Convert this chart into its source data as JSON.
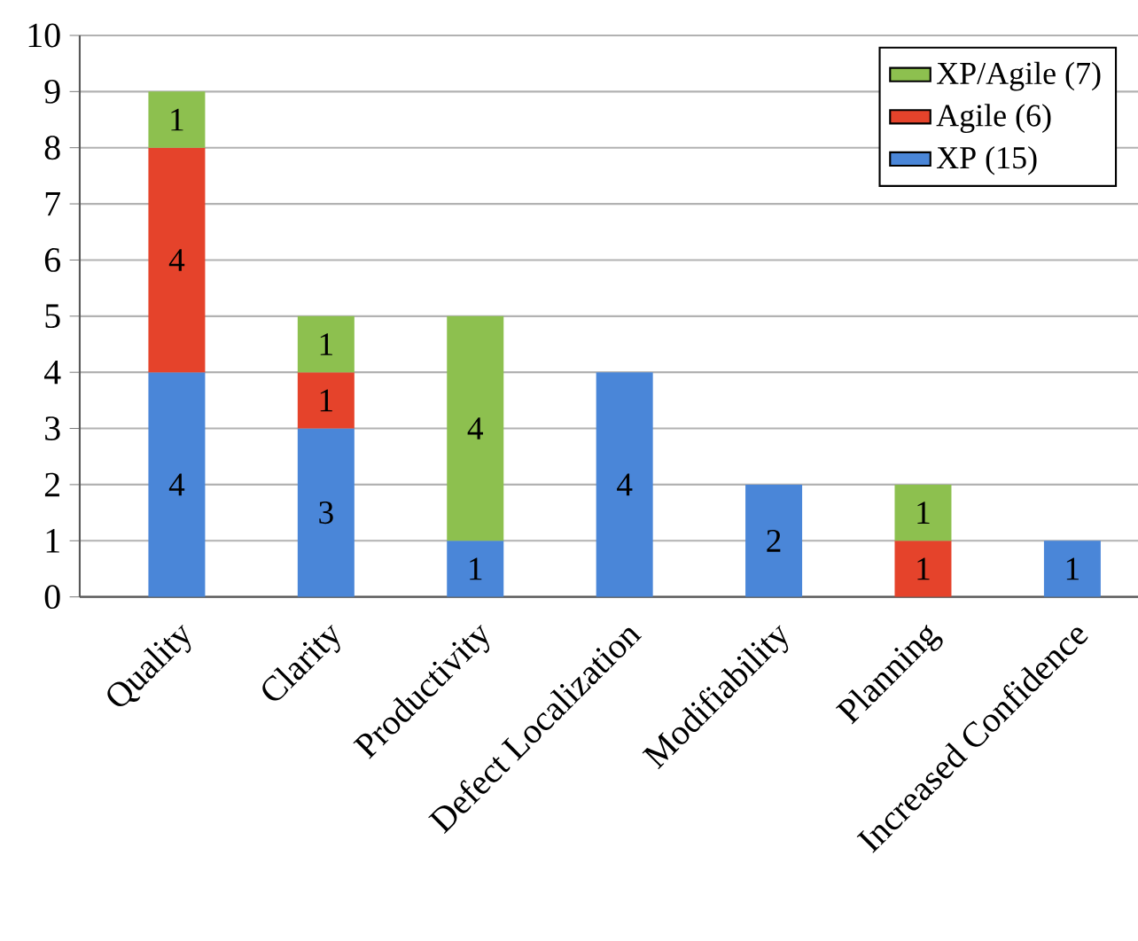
{
  "chart_data": {
    "type": "bar",
    "stacked": true,
    "data_labels": true,
    "grid": "y",
    "legend": "top right",
    "categories": [
      "Quality",
      "Clarity",
      "Productivity",
      "Defect Localization",
      "Modifiability",
      "Planning",
      "Increased Confidence"
    ],
    "series": [
      {
        "name": "XP (15)",
        "color": "#4a86d8",
        "values": [
          4,
          3,
          1,
          4,
          2,
          null,
          1
        ]
      },
      {
        "name": "Agile (6)",
        "color": "#e5432b",
        "values": [
          4,
          1,
          null,
          null,
          null,
          1,
          null
        ]
      },
      {
        "name": "XP/Agile (7)",
        "color": "#8dc04f",
        "values": [
          1,
          1,
          4,
          null,
          null,
          1,
          null
        ]
      }
    ],
    "ylim": [
      0,
      10
    ],
    "yticks": [
      0,
      1,
      2,
      3,
      4,
      5,
      6,
      7,
      8,
      9,
      10
    ]
  }
}
